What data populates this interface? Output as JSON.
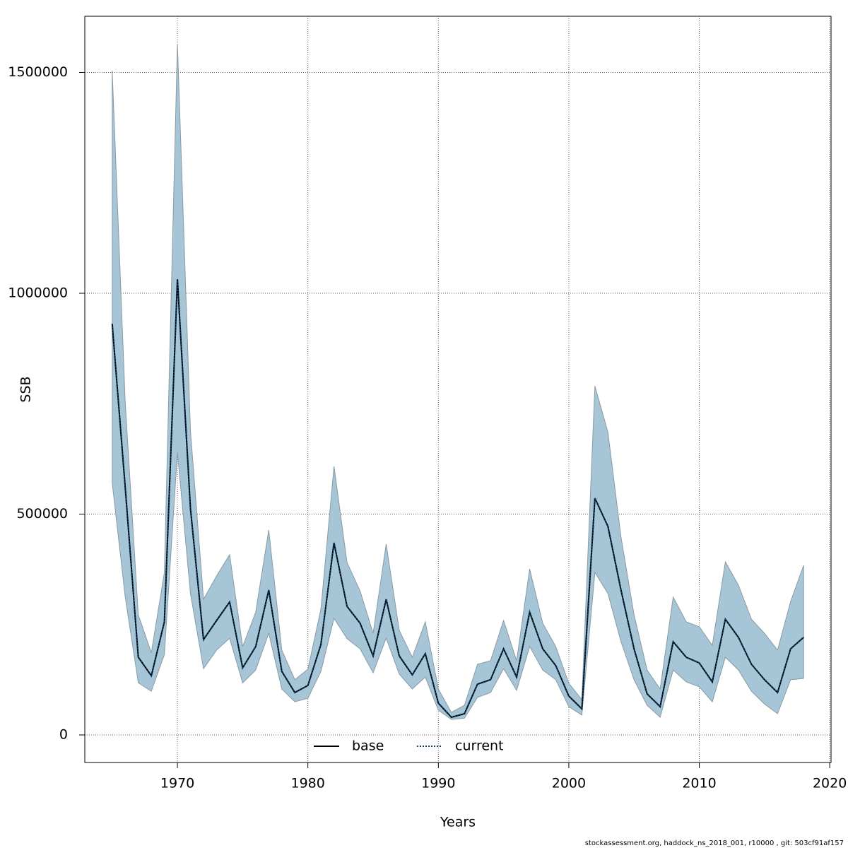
{
  "chart_data": {
    "type": "line",
    "x_label": "Years",
    "y_label": "SSB",
    "footnote": "stockassessment.org, haddock_ns_2018_001, r10000 , git: 503cf91af157",
    "x": [
      1965,
      1966,
      1967,
      1968,
      1969,
      1970,
      1971,
      1972,
      1973,
      1974,
      1975,
      1976,
      1977,
      1978,
      1979,
      1980,
      1981,
      1982,
      1983,
      1984,
      1985,
      1986,
      1987,
      1988,
      1989,
      1990,
      1991,
      1992,
      1993,
      1994,
      1995,
      1996,
      1997,
      1998,
      1999,
      2000,
      2001,
      2002,
      2003,
      2004,
      2005,
      2006,
      2007,
      2008,
      2009,
      2010,
      2011,
      2012,
      2013,
      2014,
      2015,
      2016,
      2017,
      2018
    ],
    "series": [
      {
        "name": "base",
        "color": "#000000",
        "dash": "solid",
        "values": [
          931000,
          560000,
          176000,
          134000,
          256000,
          1032000,
          512000,
          216000,
          259000,
          301000,
          152000,
          200000,
          328000,
          144000,
          96000,
          112000,
          205000,
          435000,
          291000,
          253000,
          179000,
          307000,
          179000,
          136000,
          184000,
          72000,
          40000,
          48000,
          115000,
          125000,
          195000,
          131000,
          278000,
          195000,
          157000,
          88000,
          59000,
          536000,
          472000,
          328000,
          195000,
          93000,
          64000,
          211000,
          176000,
          163000,
          120000,
          262000,
          221000,
          160000,
          125000,
          96000,
          195000,
          221000
        ]
      },
      {
        "name": "current",
        "color": "#0b3d66",
        "dash": "dotted",
        "values": [
          931000,
          560000,
          176000,
          134000,
          256000,
          1032000,
          512000,
          216000,
          259000,
          301000,
          152000,
          200000,
          328000,
          144000,
          96000,
          112000,
          205000,
          435000,
          291000,
          253000,
          179000,
          307000,
          179000,
          136000,
          184000,
          72000,
          40000,
          48000,
          115000,
          125000,
          195000,
          131000,
          278000,
          195000,
          157000,
          88000,
          59000,
          536000,
          472000,
          328000,
          195000,
          93000,
          64000,
          211000,
          176000,
          163000,
          120000,
          262000,
          221000,
          160000,
          125000,
          96000,
          195000,
          221000
        ]
      }
    ],
    "lower": [
      571000,
      312000,
      118000,
      99000,
      182000,
      640000,
      320000,
      150000,
      192000,
      219000,
      118000,
      147000,
      230000,
      104000,
      75000,
      83000,
      144000,
      264000,
      218000,
      195000,
      141000,
      219000,
      138000,
      104000,
      131000,
      56000,
      35000,
      38000,
      85000,
      96000,
      150000,
      101000,
      200000,
      147000,
      125000,
      64000,
      45000,
      368000,
      320000,
      211000,
      125000,
      67000,
      40000,
      147000,
      120000,
      109000,
      75000,
      176000,
      147000,
      99000,
      70000,
      48000,
      125000,
      128000
    ],
    "upper": [
      1504000,
      752000,
      272000,
      186000,
      368000,
      1565000,
      688000,
      307000,
      360000,
      408000,
      200000,
      278000,
      464000,
      192000,
      125000,
      149000,
      285000,
      608000,
      390000,
      326000,
      230000,
      432000,
      237000,
      176000,
      256000,
      104000,
      51000,
      67000,
      160000,
      168000,
      259000,
      168000,
      376000,
      253000,
      200000,
      117000,
      80000,
      790000,
      685000,
      448000,
      272000,
      147000,
      104000,
      312000,
      256000,
      245000,
      203000,
      392000,
      339000,
      262000,
      230000,
      192000,
      302000,
      384000
    ],
    "band_color": "#a6c5d6",
    "xlim": [
      1962.9,
      2020.1
    ],
    "ylim": [
      -62400,
      1627200
    ],
    "xticks": [
      1970,
      1980,
      1990,
      2000,
      2010,
      2020
    ],
    "yticks": [
      0,
      500000,
      1000000,
      1500000
    ],
    "grid": true,
    "legend": "bottom"
  }
}
